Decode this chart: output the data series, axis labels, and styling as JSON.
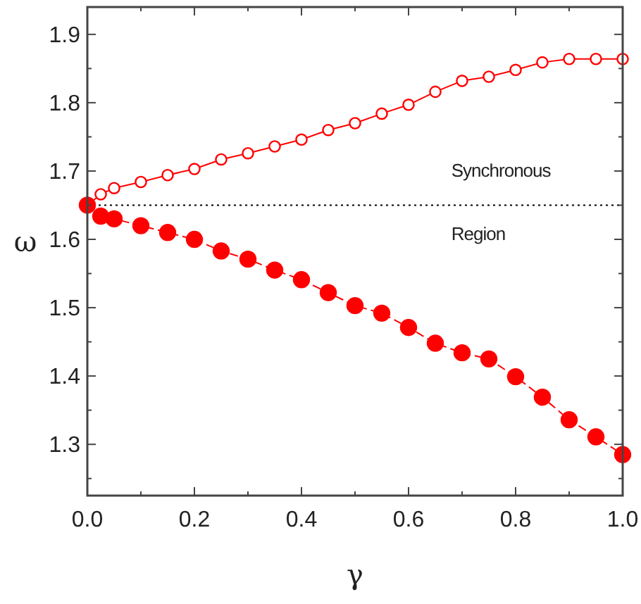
{
  "chart_data": {
    "type": "line",
    "xlabel": "γ",
    "ylabel": "ω",
    "x": [
      0,
      0.025,
      0.05,
      0.1,
      0.15,
      0.2,
      0.25,
      0.3,
      0.35,
      0.4,
      0.45,
      0.5,
      0.55,
      0.6,
      0.65,
      0.7,
      0.75,
      0.8,
      0.85,
      0.9,
      0.95,
      1.0
    ],
    "series": [
      {
        "color": "#ff0000",
        "marker": "circle",
        "line_style": "solid",
        "values": [
          1.65,
          1.666,
          1.675,
          1.684,
          1.694,
          1.703,
          1.717,
          1.726,
          1.736,
          1.746,
          1.76,
          1.77,
          1.784,
          1.797,
          1.816,
          1.832,
          1.838,
          1.848,
          1.859,
          1.864,
          1.864,
          1.864
        ]
      },
      {
        "color": "#ff0000",
        "marker": "circle",
        "line_style": "dashed",
        "values": [
          1.65,
          1.634,
          1.63,
          1.62,
          1.61,
          1.6,
          1.583,
          1.571,
          1.555,
          1.541,
          1.522,
          1.503,
          1.492,
          1.471,
          1.448,
          1.434,
          1.425,
          1.399,
          1.369,
          1.336,
          1.311,
          1.285
        ]
      }
    ],
    "xlim": [
      0,
      1
    ],
    "ylim": [
      1.225,
      1.94
    ],
    "xticks": [
      {
        "value": 0,
        "label": "0.0"
      },
      0.2,
      0.4,
      0.6,
      0.8,
      {
        "value": 1,
        "label": "1.0"
      }
    ],
    "yticks": [
      1.3,
      1.4,
      1.5,
      1.6,
      1.7,
      1.8,
      1.9
    ],
    "ref_lines": [
      {
        "axis": "y",
        "value": 1.65,
        "color": "#000000",
        "line_style": "dotted"
      }
    ],
    "annotations": [
      "Synchronous",
      "Region"
    ]
  }
}
